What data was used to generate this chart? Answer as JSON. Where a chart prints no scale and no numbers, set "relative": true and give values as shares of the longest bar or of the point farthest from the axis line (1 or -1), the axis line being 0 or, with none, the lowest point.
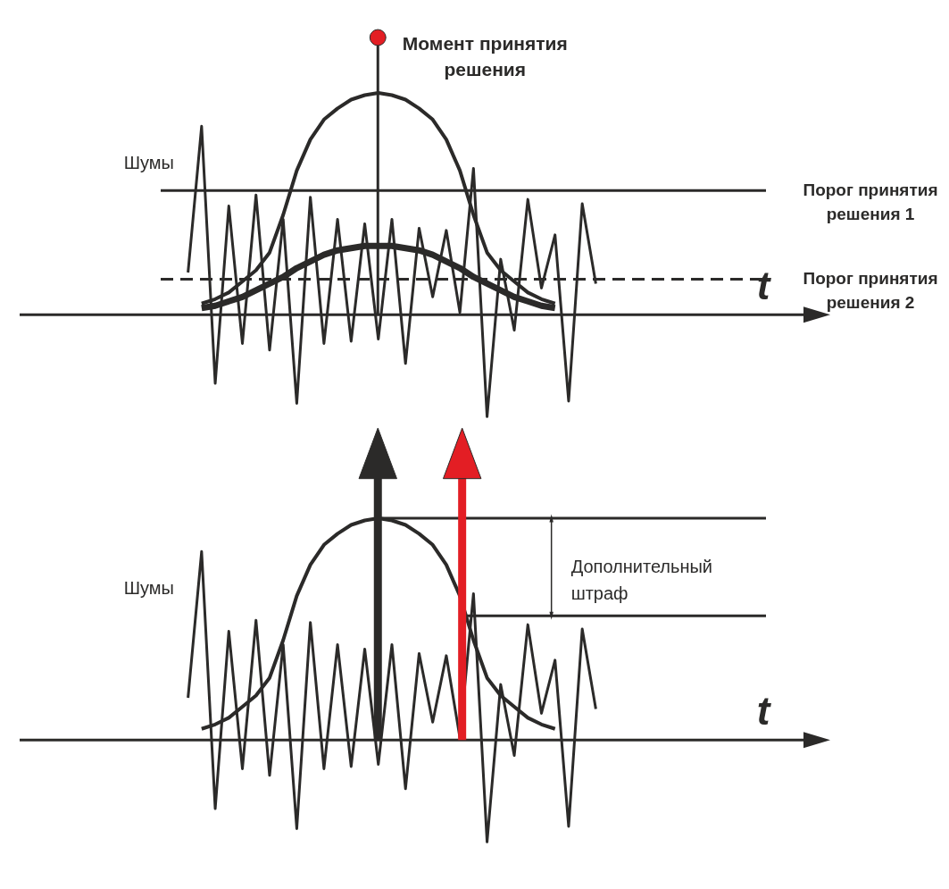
{
  "chart_data": [
    {
      "type": "line",
      "relative": true,
      "xlabel": "t",
      "categories": [
        null,
        null,
        null,
        null,
        null,
        null,
        null,
        null,
        null,
        null,
        null,
        null,
        null,
        null,
        null,
        null,
        null,
        null,
        null,
        null,
        null,
        null,
        null,
        null,
        null,
        null,
        null,
        null,
        null,
        null,
        null
      ],
      "series": [
        {
          "color": "#2b2a29",
          "values": [
            0.19,
            0.85,
            -0.31,
            0.49,
            -0.13,
            0.54,
            -0.16,
            0.43,
            -0.4,
            0.53,
            -0.13,
            0.43,
            -0.12,
            0.41,
            -0.11,
            0.43,
            -0.22,
            0.39,
            0.08,
            0.38,
            0.01,
            0.66,
            -0.46,
            0.25,
            -0.07,
            0.52,
            0.12,
            0.36,
            -0.39,
            0.5,
            0.14
          ]
        },
        {
          "color": "#2b2a29",
          "values": [
            null,
            0.05,
            0.07,
            0.1,
            0.15,
            0.2,
            0.28,
            0.45,
            0.65,
            0.79,
            0.88,
            0.93,
            0.97,
            0.99,
            1,
            0.99,
            0.97,
            0.93,
            0.88,
            0.79,
            0.65,
            0.45,
            0.28,
            0.2,
            0.15,
            0.1,
            0.07,
            0.05,
            null,
            null,
            null
          ]
        },
        {
          "color": "#2b2a29",
          "values": [
            null,
            0.03,
            0.04,
            0.06,
            0.08,
            0.11,
            0.14,
            0.17,
            0.21,
            0.24,
            0.27,
            0.29,
            0.3,
            0.31,
            0.31,
            0.31,
            0.3,
            0.29,
            0.27,
            0.24,
            0.21,
            0.17,
            0.14,
            0.11,
            0.08,
            0.06,
            0.04,
            0.03,
            null,
            null,
            null
          ]
        }
      ],
      "ref_lines": [
        {
          "axis": "y",
          "value": 0.56,
          "label": "Порог принятия решения 1",
          "color": "#2b2a29"
        },
        {
          "axis": "y",
          "value": 0.16,
          "label": "Порог принятия решения 2",
          "color": "#2b2a29",
          "line_style": "dashed"
        }
      ],
      "annotations": [
        "Шумы",
        "Момент принятия решения"
      ]
    },
    {
      "type": "line",
      "relative": true,
      "xlabel": "t",
      "categories": [
        null,
        null,
        null,
        null,
        null,
        null,
        null,
        null,
        null,
        null,
        null,
        null,
        null,
        null,
        null,
        null,
        null,
        null,
        null,
        null,
        null,
        null,
        null,
        null,
        null,
        null,
        null,
        null,
        null,
        null,
        null
      ],
      "series": [
        {
          "color": "#2b2a29",
          "values": [
            0.19,
            0.85,
            -0.31,
            0.49,
            -0.13,
            0.54,
            -0.16,
            0.43,
            -0.4,
            0.53,
            -0.13,
            0.43,
            -0.12,
            0.41,
            -0.11,
            0.43,
            -0.22,
            0.39,
            0.08,
            0.38,
            0.01,
            0.66,
            -0.46,
            0.25,
            -0.07,
            0.52,
            0.12,
            0.36,
            -0.39,
            0.5,
            0.14
          ]
        },
        {
          "color": "#2b2a29",
          "values": [
            null,
            0.05,
            0.07,
            0.1,
            0.15,
            0.2,
            0.28,
            0.45,
            0.65,
            0.79,
            0.88,
            0.93,
            0.97,
            0.99,
            1,
            0.99,
            0.97,
            0.93,
            0.88,
            0.79,
            0.65,
            0.45,
            0.28,
            0.2,
            0.15,
            0.1,
            0.07,
            0.05,
            null,
            null,
            null
          ]
        }
      ],
      "ref_lines": [
        {
          "axis": "y",
          "value": 1.0,
          "color": "#2b2a29"
        },
        {
          "axis": "y",
          "value": 0.56,
          "color": "#2b2a29"
        }
      ],
      "annotations": [
        "Шумы",
        "Дополнительный штраф"
      ]
    }
  ]
}
